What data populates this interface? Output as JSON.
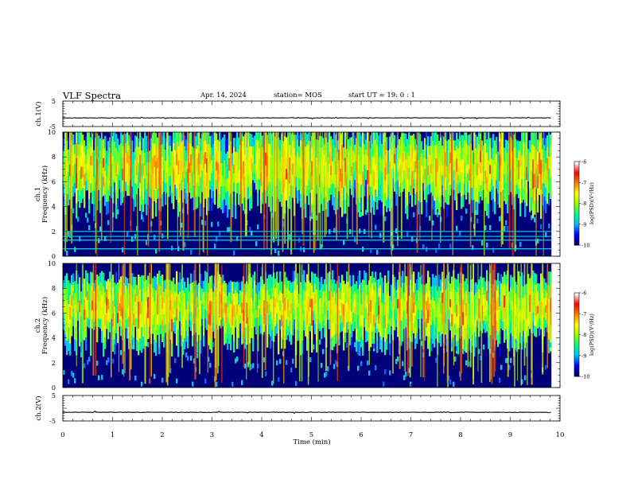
{
  "header": {
    "title": "VLF Spectra",
    "date": "Apr. 14, 2024",
    "station": "station= MOS",
    "start_ut": "start UT =   19: 0  : 1"
  },
  "chart_data": [
    {
      "type": "line",
      "ylabel": "ch.1(V)",
      "ylim": [
        -5,
        5
      ],
      "yticks": [
        "5",
        "-5"
      ],
      "x": [
        0,
        9.83
      ],
      "baseline": -1.6,
      "xlim": [
        0,
        10
      ]
    },
    {
      "type": "heatmap",
      "ylabel_top": "ch.1",
      "ylabel": "Frequency (kHz)",
      "ylim": [
        0,
        10
      ],
      "yticks": [
        "0",
        "2",
        "4",
        "6",
        "8",
        "10"
      ],
      "xlim": [
        0,
        10
      ],
      "data_end_min": 9.83,
      "emission_band_khz": [
        5.5,
        9.5
      ],
      "interference_lines_khz": [
        0.6,
        1.3,
        1.6,
        2.0
      ],
      "colorbar": {
        "label": "log(PSD)(V²/Hz)",
        "range": [
          -10,
          -6
        ],
        "ticks": [
          "-6",
          "-7",
          "-8",
          "-9",
          "-10"
        ],
        "colors": [
          "#000060",
          "#0000ff",
          "#00c0ff",
          "#00ff80",
          "#a0ff00",
          "#ffff00",
          "#ff8000",
          "#ff0000",
          "#ffffff"
        ]
      }
    },
    {
      "type": "heatmap",
      "ylabel_top": "ch.2",
      "ylabel": "Frequency (kHz)",
      "ylim": [
        0,
        10
      ],
      "yticks": [
        "0",
        "2",
        "4",
        "6",
        "8",
        "10"
      ],
      "xlim": [
        0,
        10
      ],
      "data_end_min": 9.83,
      "emission_band_khz": [
        5.0,
        8.5
      ],
      "colorbar": {
        "label": "log(PSD)(V²/Hz)",
        "range": [
          -10,
          -6
        ],
        "ticks": [
          "-6",
          "-7",
          "-8",
          "-9",
          "-10"
        ],
        "colors": [
          "#000060",
          "#0000ff",
          "#00c0ff",
          "#00ff80",
          "#a0ff00",
          "#ffff00",
          "#ff8000",
          "#ff0000",
          "#ffffff"
        ]
      }
    },
    {
      "type": "line",
      "ylabel": "ch.2(V)",
      "ylim": [
        -5,
        5
      ],
      "yticks": [
        "5",
        "-5"
      ],
      "x": [
        0,
        9.83
      ],
      "baseline": -1.6,
      "xlim": [
        0,
        10
      ]
    }
  ],
  "x_axis": {
    "label": "Time  (min)",
    "ticks": [
      "0",
      "1",
      "2",
      "3",
      "4",
      "5",
      "6",
      "7",
      "8",
      "9",
      "10"
    ]
  }
}
